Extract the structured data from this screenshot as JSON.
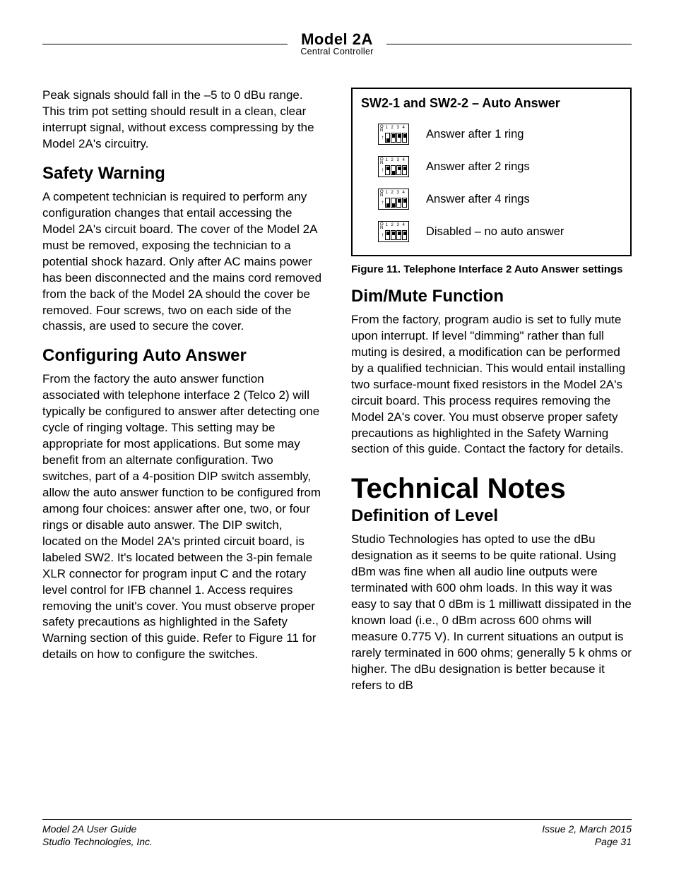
{
  "header": {
    "title": "Model 2A",
    "subtitle": "Central Controller"
  },
  "left": {
    "intro_p": "Peak signals should fall in the –5 to 0 dBu range. This trim pot setting should result in a clean, clear interrupt signal, without excess compressing by the Model 2A's circuitry.",
    "safety_h": "Safety Warning",
    "safety_p": "A competent technician is required to perform any configuration changes that entail accessing the Model 2A's circuit board. The cover of the Model 2A must be removed, exposing the technician to a potential shock hazard. Only after AC mains power has been disconnected and the mains cord removed from the back of the Model 2A should the cover be removed. Four screws, two on each side of the chassis, are used to secure the cover.",
    "config_h": "Configuring Auto Answer",
    "config_p": "From the factory the auto answer function associated with telephone interface 2 (Telco 2) will typically be configured to answer after detecting one cycle of ringing voltage. This setting may be appropriate for most applications. But some may benefit from an alternate configuration. Two switches, part of a 4-position DIP switch assembly, allow the auto answer function to be configured from among four choices: answer after one, two, or four rings or disable auto answer. The DIP switch, located on the Model 2A's printed circuit board, is labeled SW2. It's located between the 3-pin female XLR connector for program input C and the rotary level control for IFB channel 1. Access requires removing the unit's cover. You must observe proper safety precautions as highlighted in the Safety Warning section of this guide. Refer to Figure 11 for details on how to configure the switches."
  },
  "figure": {
    "title": "SW2-1 and SW2-2 – Auto Answer",
    "rows": [
      {
        "pattern": [
          "dn",
          "up",
          "up",
          "up"
        ],
        "label": "Answer after 1 ring"
      },
      {
        "pattern": [
          "up",
          "dn",
          "up",
          "up"
        ],
        "label": "Answer after 2 rings"
      },
      {
        "pattern": [
          "dn",
          "dn",
          "up",
          "up"
        ],
        "label": "Answer after 4 rings"
      },
      {
        "pattern": [
          "up",
          "up",
          "up",
          "up"
        ],
        "label": "Disabled – no auto answer"
      }
    ],
    "caption": "Figure 11. Telephone Interface 2 Auto Answer settings"
  },
  "right": {
    "dim_h": "Dim/Mute Function",
    "dim_p": "From the factory, program audio is set to fully mute upon interrupt. If level \"dimming\" rather than full muting is desired, a modification can be performed by a qualified technician. This would entail installing two surface-mount fixed resistors in the Model 2A's circuit board. This process requires removing the Model 2A's cover. You must observe proper safety precautions as highlighted in the Safety Warning section of this guide. Contact the factory for details.",
    "tech_h": "Technical Notes",
    "def_h": "Definition of Level",
    "def_p": "Studio Technologies has opted to use the dBu designation as it seems to be quite rational. Using dBm was fine when all audio line outputs were terminated with 600 ohm loads. In this way it was easy to say that 0 dBm is 1 milliwatt dissipated in the known load (i.e., 0 dBm across 600 ohms will measure 0.775 V). In current situations an output is rarely terminated in 600 ohms; generally 5 k ohms or higher. The dBu designation is better because it refers to dB"
  },
  "footer": {
    "left1": "Model 2A User Guide",
    "left2": "Studio Technologies, Inc.",
    "right1": "Issue 2, March 2015",
    "right2": "Page 31"
  }
}
